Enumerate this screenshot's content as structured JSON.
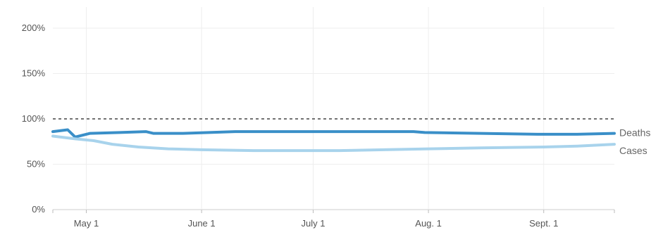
{
  "chart_data": {
    "type": "line",
    "title": "",
    "xlabel": "",
    "ylabel": "",
    "x_ticks": [
      {
        "label": "May 1",
        "date": "2020-05-01"
      },
      {
        "label": "June 1",
        "date": "2020-06-01"
      },
      {
        "label": "July 1",
        "date": "2020-07-01"
      },
      {
        "label": "Aug. 1",
        "date": "2020-08-01"
      },
      {
        "label": "Sept. 1",
        "date": "2020-09-01"
      }
    ],
    "y_ticks": [
      {
        "label": "0%",
        "value": 0
      },
      {
        "label": "50%",
        "value": 50
      },
      {
        "label": "100%",
        "value": 100
      },
      {
        "label": "150%",
        "value": 150
      },
      {
        "label": "200%",
        "value": 200
      }
    ],
    "xlim": [
      "2020-04-22",
      "2020-09-20"
    ],
    "ylim": [
      0,
      200
    ],
    "grid": {
      "vertical": true,
      "horizontal": true
    },
    "reference_line": {
      "value": 100,
      "style": "dashed"
    },
    "series": [
      {
        "name": "Deaths",
        "color": "#3a8fc8",
        "points": [
          {
            "x": "2020-04-22",
            "y": 86
          },
          {
            "x": "2020-04-26",
            "y": 88
          },
          {
            "x": "2020-04-28",
            "y": 80
          },
          {
            "x": "2020-05-02",
            "y": 84
          },
          {
            "x": "2020-05-10",
            "y": 85
          },
          {
            "x": "2020-05-17",
            "y": 86
          },
          {
            "x": "2020-05-19",
            "y": 84
          },
          {
            "x": "2020-05-27",
            "y": 84
          },
          {
            "x": "2020-06-03",
            "y": 85
          },
          {
            "x": "2020-06-10",
            "y": 86
          },
          {
            "x": "2020-06-20",
            "y": 86
          },
          {
            "x": "2020-07-01",
            "y": 86
          },
          {
            "x": "2020-07-15",
            "y": 86
          },
          {
            "x": "2020-07-28",
            "y": 86
          },
          {
            "x": "2020-07-31",
            "y": 85
          },
          {
            "x": "2020-08-15",
            "y": 84
          },
          {
            "x": "2020-08-31",
            "y": 83
          },
          {
            "x": "2020-09-10",
            "y": 83
          },
          {
            "x": "2020-09-20",
            "y": 84
          }
        ]
      },
      {
        "name": "Cases",
        "color": "#a8d3ec",
        "points": [
          {
            "x": "2020-04-22",
            "y": 81
          },
          {
            "x": "2020-04-28",
            "y": 78
          },
          {
            "x": "2020-05-03",
            "y": 76
          },
          {
            "x": "2020-05-08",
            "y": 72
          },
          {
            "x": "2020-05-15",
            "y": 69
          },
          {
            "x": "2020-05-23",
            "y": 67
          },
          {
            "x": "2020-06-01",
            "y": 66
          },
          {
            "x": "2020-06-15",
            "y": 65
          },
          {
            "x": "2020-06-25",
            "y": 65
          },
          {
            "x": "2020-07-08",
            "y": 65
          },
          {
            "x": "2020-07-20",
            "y": 66
          },
          {
            "x": "2020-08-01",
            "y": 67
          },
          {
            "x": "2020-08-15",
            "y": 68
          },
          {
            "x": "2020-09-01",
            "y": 69
          },
          {
            "x": "2020-09-10",
            "y": 70
          },
          {
            "x": "2020-09-20",
            "y": 72
          }
        ]
      }
    ]
  }
}
